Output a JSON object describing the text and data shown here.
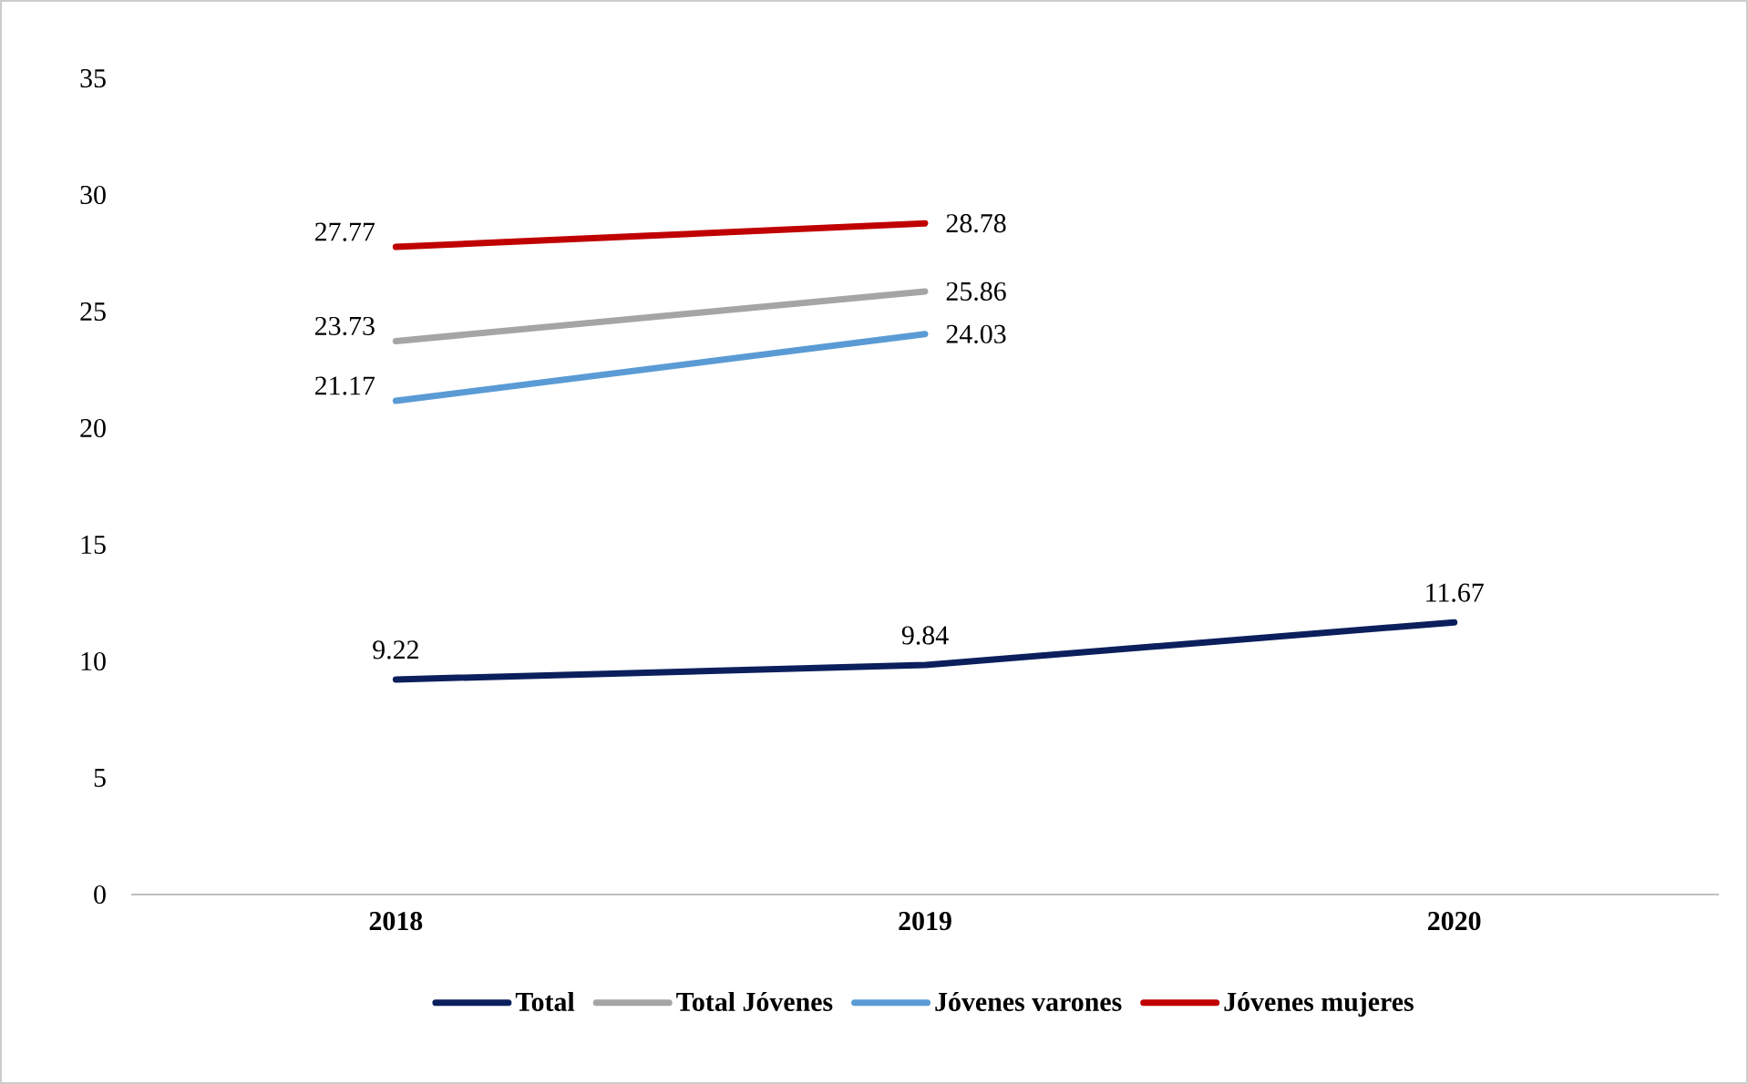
{
  "chart_data": {
    "type": "line",
    "categories": [
      "2018",
      "2019",
      "2020"
    ],
    "series": [
      {
        "name": "Total",
        "color": "#0b1f5c",
        "values": [
          9.22,
          9.84,
          11.67
        ]
      },
      {
        "name": "Total Jóvenes",
        "color": "#a5a5a5",
        "values": [
          23.73,
          25.86,
          null
        ]
      },
      {
        "name": "Jóvenes varones",
        "color": "#5b9bd5",
        "values": [
          21.17,
          24.03,
          null
        ]
      },
      {
        "name": "Jóvenes mujeres",
        "color": "#c00000",
        "values": [
          27.77,
          28.78,
          null
        ]
      }
    ],
    "ylim": [
      0,
      35
    ],
    "yticks": [
      0,
      5,
      10,
      15,
      20,
      25,
      30,
      35
    ],
    "data_labels": true,
    "legend": "bottom",
    "marker": "none",
    "line_style": "solid"
  }
}
